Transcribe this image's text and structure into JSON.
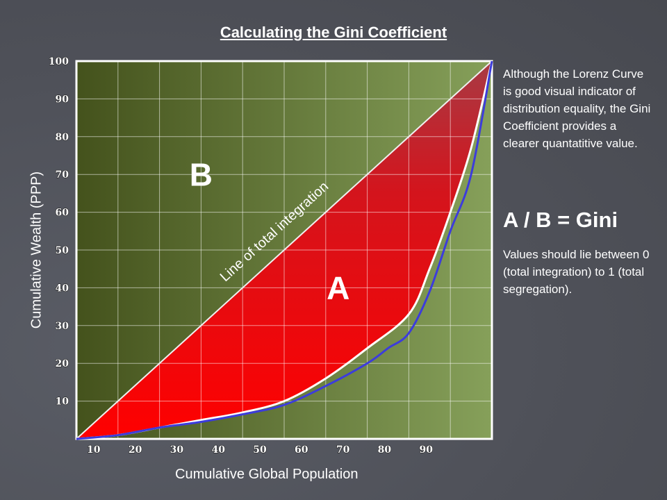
{
  "slide": {
    "title": "Calculating the Gini Coefficient",
    "description": "Although the Lorenz Curve is  good visual indicator of distribution equality, the Gini Coefficient provides a clearer quantatitive value.",
    "formula": "A / B = Gini",
    "range_note": "Values should lie between 0 (total integration) to 1 (total segregation)."
  },
  "chart_data": {
    "type": "area",
    "xlabel": "Cumulative Global Population",
    "ylabel": "Cumulative Wealth (PPP)",
    "xlim": [
      0,
      100
    ],
    "ylim": [
      0,
      100
    ],
    "x_ticks": [
      "10",
      "20",
      "30",
      "40",
      "50",
      "60",
      "70",
      "80",
      "90"
    ],
    "y_ticks": [
      "10",
      "20",
      "30",
      "40",
      "50",
      "60",
      "70",
      "80",
      "90",
      "100"
    ],
    "grid": true,
    "regions": [
      {
        "name": "B",
        "color": "#6b8a3a"
      },
      {
        "name": "A",
        "color": "#e01010"
      }
    ],
    "equality_line": {
      "label": "Line of total integration",
      "x": [
        0,
        100
      ],
      "y": [
        0,
        100
      ],
      "color": "#f0f0f0"
    },
    "series": [
      {
        "name": "white curve",
        "color": "#ffffff",
        "x": [
          0,
          10,
          20,
          30,
          40,
          50,
          60,
          70,
          80,
          85,
          90,
          95,
          100
        ],
        "y": [
          0,
          1,
          3,
          5,
          7,
          10,
          16,
          24,
          33,
          45,
          60,
          77,
          100
        ]
      },
      {
        "name": "blue curve",
        "color": "#3c3cdc",
        "x": [
          0,
          10,
          20,
          30,
          40,
          50,
          60,
          70,
          75,
          80,
          85,
          90,
          95,
          100
        ],
        "y": [
          0,
          1,
          3,
          4.5,
          6.5,
          9,
          14,
          20,
          24,
          28,
          39,
          55,
          70,
          100
        ]
      }
    ]
  }
}
